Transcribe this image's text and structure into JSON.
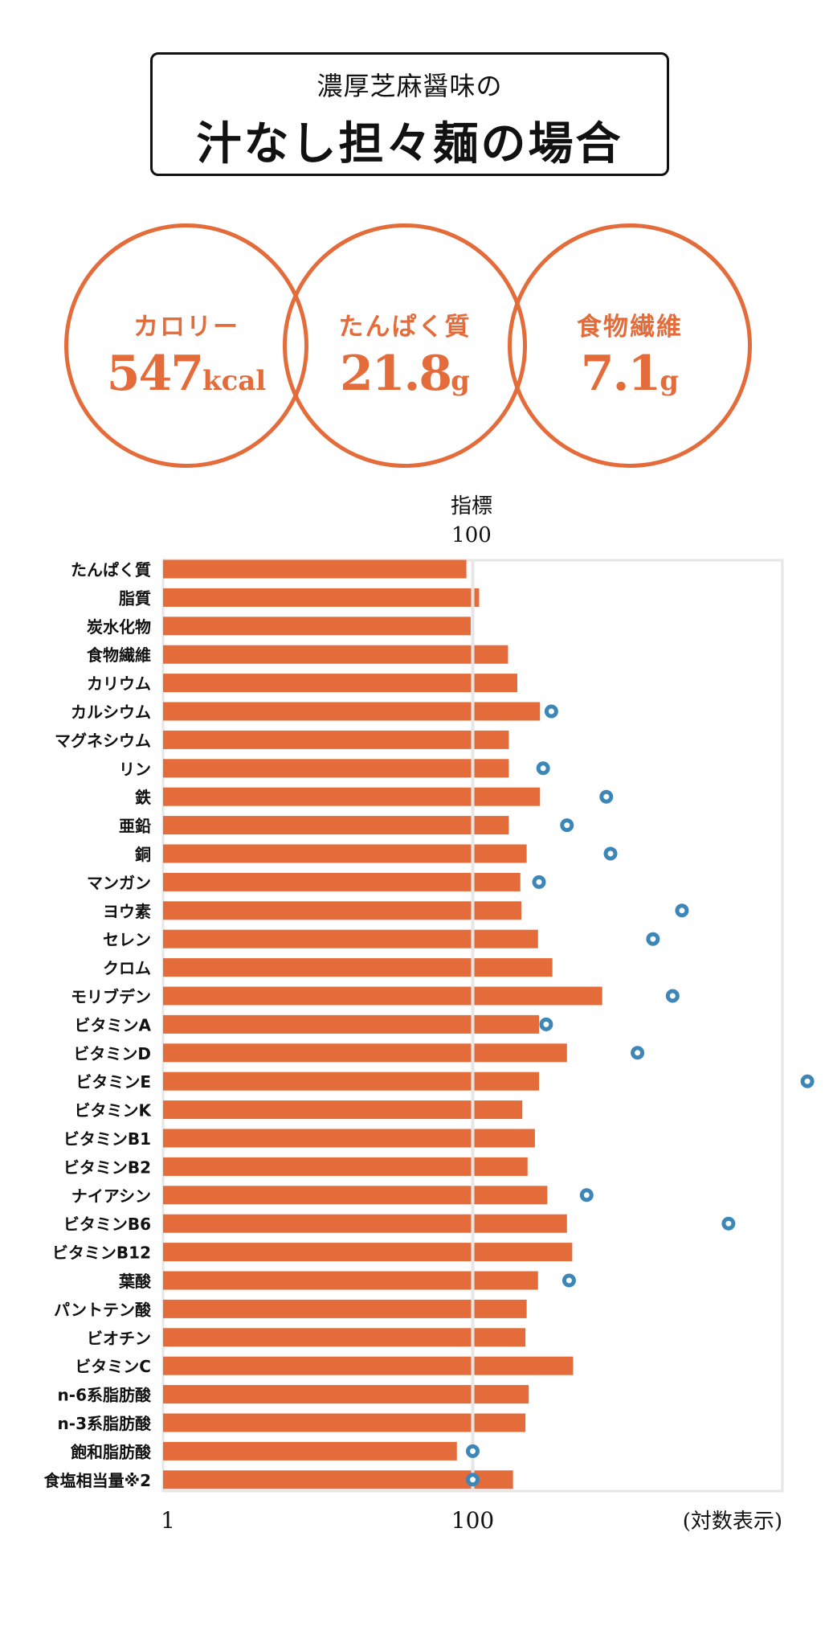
{
  "header": {
    "subtitle": "濃厚芝麻醤味の",
    "title": "汁なし担々麺の場合"
  },
  "summary": [
    {
      "label": "カロリー",
      "value": "547",
      "unit": "kcal"
    },
    {
      "label": "たんぱく質",
      "value": "21.8",
      "unit": "g"
    },
    {
      "label": "食物繊維",
      "value": "7.1",
      "unit": "g"
    }
  ],
  "colors": {
    "bar": "#e46c3a",
    "dot": "#3d87b8",
    "grid": "#e6e6e6"
  },
  "chart_data": {
    "type": "bar",
    "orientation": "horizontal",
    "x_scale": "log",
    "xlim": [
      1,
      10000
    ],
    "reference_label": "指標",
    "reference_value_label": "100",
    "reference_value": 100,
    "x_ticks": [
      "1",
      "100"
    ],
    "x_tick_values": [
      1,
      100
    ],
    "scale_note": "(対数表示)",
    "categories": [
      "たんぱく質",
      "脂質",
      "炭水化物",
      "食物繊維",
      "カリウム",
      "カルシウム",
      "マグネシウム",
      "リン",
      "鉄",
      "亜鉛",
      "銅",
      "マンガン",
      "ヨウ素",
      "セレン",
      "クロム",
      "モリブデン",
      "ビタミンA",
      "ビタミンD",
      "ビタミンE",
      "ビタミンK",
      "ビタミンB1",
      "ビタミンB2",
      "ナイアシン",
      "ビタミンB6",
      "ビタミンB12",
      "葉酸",
      "パントテン酸",
      "ビオチン",
      "ビタミンC",
      "n-6系脂肪酸",
      "n-3系脂肪酸",
      "飽和脂肪酸",
      "食塩相当量※2"
    ],
    "series": [
      {
        "name": "bars",
        "values": [
          91,
          110,
          97,
          169,
          194,
          272,
          171,
          171,
          272,
          171,
          223,
          203,
          206,
          264,
          327,
          686,
          268,
          406,
          268,
          209,
          252,
          226,
          303,
          406,
          439,
          264,
          223,
          219,
          445,
          230,
          219,
          79,
          182
        ]
      },
      {
        "name": "dots",
        "values": [
          null,
          null,
          null,
          null,
          null,
          322,
          null,
          285,
          729,
          406,
          776,
          268,
          2245,
          1459,
          null,
          1954,
          298,
          1159,
          14500,
          null,
          null,
          null,
          544,
          4487,
          null,
          419,
          null,
          null,
          null,
          null,
          null,
          100,
          100
        ]
      }
    ]
  }
}
